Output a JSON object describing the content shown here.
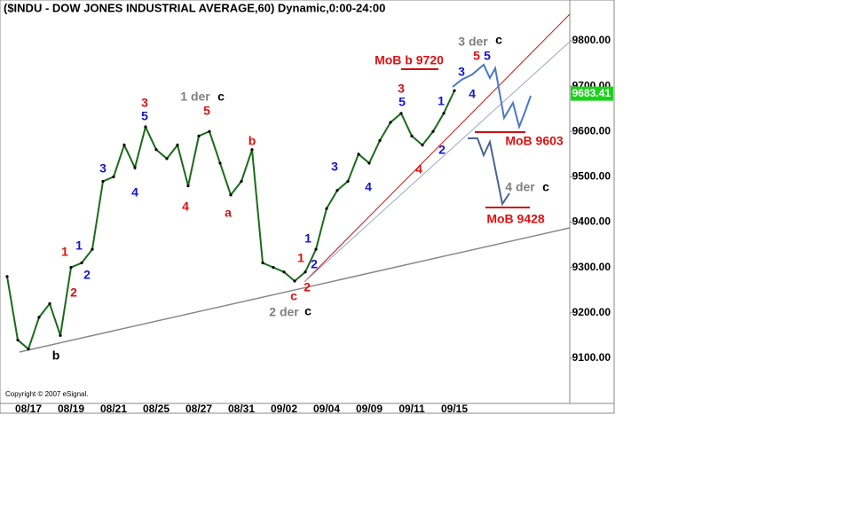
{
  "chart_data": {
    "type": "line",
    "title": "($INDU - DOW JONES INDUSTRIAL AVERAGE,60) Dynamic,0:00-24:00",
    "categories": [
      null,
      null,
      "08/17",
      null,
      null,
      null,
      "08/19",
      null,
      null,
      null,
      "08/21",
      null,
      null,
      null,
      "08/25",
      null,
      null,
      null,
      "08/27",
      null,
      null,
      null,
      "08/31",
      null,
      null,
      null,
      "09/02",
      null,
      null,
      null,
      "09/04",
      null,
      null,
      null,
      "09/09",
      null,
      null,
      null,
      "09/11",
      null,
      null,
      null,
      "09/15"
    ],
    "values": [
      9280,
      9140,
      9120,
      9190,
      9220,
      9150,
      9300,
      9310,
      9340,
      9490,
      9500,
      9570,
      9520,
      9610,
      9560,
      9540,
      9570,
      9480,
      9590,
      9600,
      9530,
      9460,
      9490,
      9560,
      9310,
      9300,
      9290,
      9270,
      9290,
      9340,
      9430,
      9470,
      9490,
      9550,
      9530,
      9580,
      9620,
      9640,
      9590,
      9570,
      9600,
      9640,
      9690
    ],
    "color": "#1a6b1a",
    "ylim": [
      9000,
      9890
    ],
    "yticks": [
      {
        "value": 9100,
        "label": "9100.00"
      },
      {
        "value": 9200,
        "label": "9200.00"
      },
      {
        "value": 9300,
        "label": "9300.00"
      },
      {
        "value": 9400,
        "label": "9400.00"
      },
      {
        "value": 9500,
        "label": "9500.00"
      },
      {
        "value": 9600,
        "label": "9600.00"
      },
      {
        "value": 9700,
        "label": "9700.00"
      },
      {
        "value": 9800,
        "label": "9800.00"
      }
    ],
    "last_price": 9683.41,
    "copyright": "Copyright © 2007 eSignal.",
    "annotations": [
      "1",
      "2",
      "1",
      "2",
      "3",
      "4",
      "3",
      "5",
      "4",
      "5",
      "1 der",
      "c",
      "b",
      "a",
      "b",
      "2 der",
      "c",
      "c",
      "2",
      "1",
      "1",
      "2",
      "3",
      "4",
      "3",
      "5",
      "4",
      "1",
      "2",
      "3",
      "4",
      "5",
      "5",
      "3 der",
      "c",
      "MoB b 9720",
      "MoB 9603",
      "4 der",
      "c",
      "MoB 9428"
    ]
  }
}
